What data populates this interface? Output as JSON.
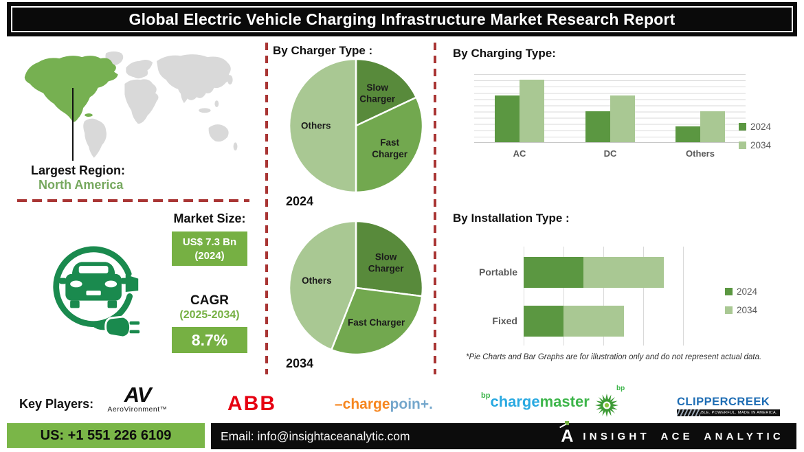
{
  "header": {
    "title": "Global Electric Vehicle Charging Infrastructure Market Research Report"
  },
  "region": {
    "label": "Largest Region:",
    "value": "North America"
  },
  "market": {
    "size_label": "Market Size:",
    "size_value": "US$ 7.3 Bn",
    "size_year": "(2024)",
    "cagr_label": "CAGR",
    "cagr_period": "(2025-2034)",
    "cagr_value": "8.7%"
  },
  "chart_data": [
    {
      "type": "pie",
      "title": "By Charger Type :",
      "year_label": "2024",
      "slices": [
        {
          "label": "Slow Charger",
          "lines": [
            "Slow",
            "Charger"
          ],
          "value": 18,
          "color": "pie_dark"
        },
        {
          "label": "Fast Charger",
          "lines": [
            "Fast",
            "Charger"
          ],
          "value": 32,
          "color": "pie_mid"
        },
        {
          "label": "Others",
          "lines": [
            "Others"
          ],
          "value": 50,
          "color": "pie_light"
        }
      ]
    },
    {
      "type": "pie",
      "year_label": "2034",
      "slices": [
        {
          "label": "Slow Charger",
          "lines": [
            "Slow",
            "Charger"
          ],
          "value": 27,
          "color": "pie_dark"
        },
        {
          "label": "Fast Charger",
          "lines": [
            "Fast Charger"
          ],
          "value": 29,
          "color": "pie_mid"
        },
        {
          "label": "Others",
          "lines": [
            "Others"
          ],
          "value": 44,
          "color": "pie_light"
        }
      ]
    },
    {
      "type": "bar",
      "title": "By Charging Type:",
      "categories": [
        "AC",
        "DC",
        "Others"
      ],
      "series": [
        {
          "name": "2024",
          "color": "bar_dark",
          "values": [
            7.5,
            5,
            2.5
          ]
        },
        {
          "name": "2034",
          "color": "pie_light",
          "values": [
            10,
            7.5,
            5
          ]
        }
      ],
      "ylim": [
        0,
        11
      ],
      "grid": true,
      "legend_position": "right"
    },
    {
      "type": "stacked-bar-horizontal",
      "title": "By Installation Type :",
      "categories": [
        "Portable",
        "Fixed"
      ],
      "series": [
        {
          "name": "2024",
          "color": "bar_dark",
          "values": [
            1.5,
            1
          ]
        },
        {
          "name": "2034",
          "color": "pie_light",
          "values": [
            2,
            1.5
          ]
        }
      ],
      "xlim": [
        0,
        4
      ],
      "grid": true,
      "legend_position": "right"
    }
  ],
  "disclaimer": "*Pie Charts and Bar Graphs are for illustration only and do not represent actual data.",
  "key_players": {
    "label": "Key Players:",
    "aerovironment": {
      "mark": "AV",
      "name": "AeroVironment™"
    },
    "abb": {
      "mark": "ABB"
    },
    "chargepoint": {
      "part1": "–charge",
      "part2": "poin+."
    },
    "chargemaster": {
      "prefix": "bp",
      "part1": "charge",
      "part2": "master"
    },
    "bp": {
      "label": "bp"
    },
    "clippercreek": {
      "mark": "CLIPPERCREEK",
      "tagline": "RELIABLE. POWERFUL. MADE IN AMERICA."
    }
  },
  "footer": {
    "phone": "US: +1 551 226 6109",
    "email": "Email: info@insightaceanalytic.com",
    "logo_glyph": "A",
    "brand": "INSIGHT ACE ANALYTIC"
  },
  "colors": {
    "pie_dark": "#588a3b",
    "pie_mid": "#72a84f",
    "pie_light": "#a9c893",
    "bar_dark": "#5b9741",
    "accent_green": "#76b043",
    "icon_green": "#1a8a4e",
    "divider_red": "#a93534",
    "map_gray": "#d9d9d9",
    "map_highlight": "#76b051"
  }
}
